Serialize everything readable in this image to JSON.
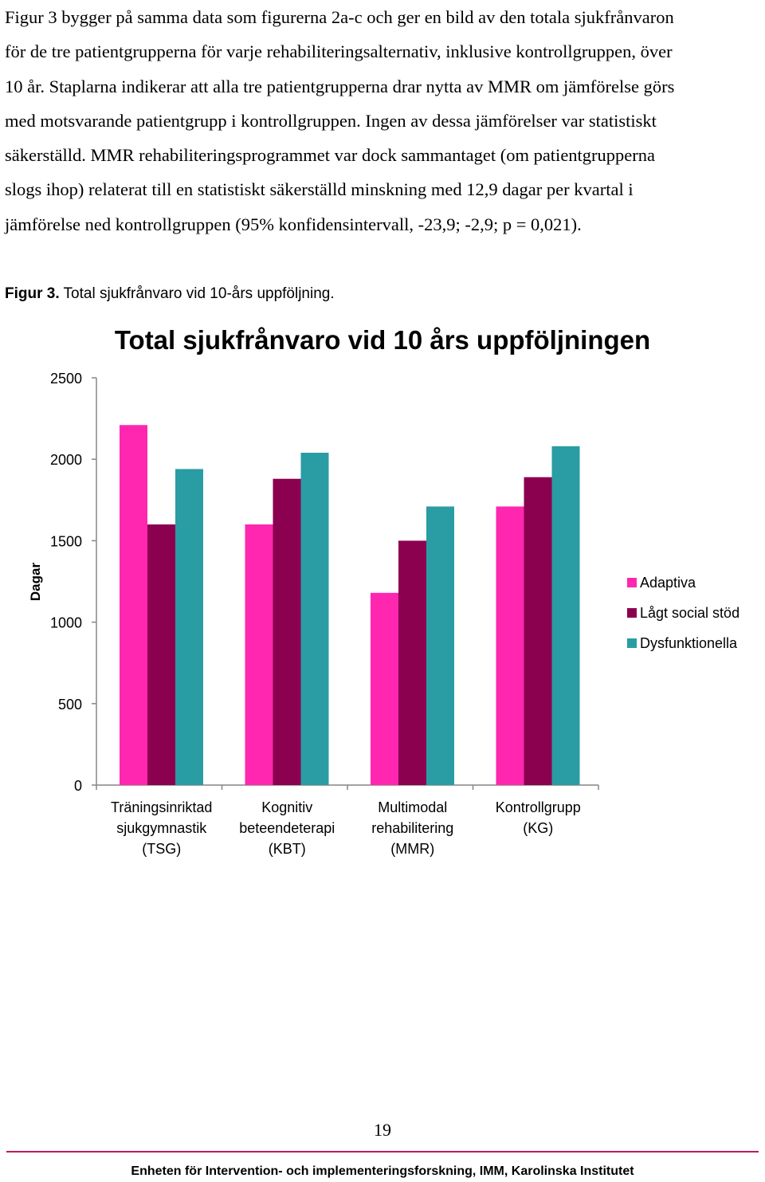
{
  "paragraph": {
    "lines": [
      "Figur 3 bygger på samma data som figurerna 2a-c och ger en bild av den totala sjukfrånvaron",
      "för de tre patientgrupperna för varje rehabiliteringsalternativ, inklusive kontrollgruppen, över",
      "10 år. Staplarna indikerar att alla tre patientgrupperna drar nytta av MMR om jämförelse görs",
      "med motsvarande patientgrupp i kontrollgruppen. Ingen av dessa jämförelser var statistiskt",
      "säkerställd. MMR rehabiliteringsprogrammet var dock sammantaget (om patientgrupperna",
      "slogs ihop) relaterat till en statistiskt säkerställd minskning med 12,9 dagar per kvartal i",
      "jämförelse ned kontrollgruppen (95% konfidensintervall, -23,9; -2,9; p = 0,021)."
    ]
  },
  "caption": {
    "label": "Figur 3.",
    "text": " Total sjukfrånvaro vid 10-års uppföljning."
  },
  "chart_data": {
    "type": "bar",
    "title": "Total sjukfrånvaro vid 10 års uppföljningen",
    "ylabel": "Dagar",
    "xlabel": "",
    "ylim": [
      0,
      2500
    ],
    "yticks": [
      0,
      500,
      1000,
      1500,
      2000,
      2500
    ],
    "grid": false,
    "legend_position": "right",
    "categories": [
      [
        "Träningsinriktad",
        "sjukgymnastik",
        "(TSG)"
      ],
      [
        "Kognitiv",
        "beteendeterapi",
        "(KBT)"
      ],
      [
        "Multimodal",
        "rehabilitering",
        "(MMR)"
      ],
      [
        "Kontrollgrupp",
        "(KG)"
      ]
    ],
    "series": [
      {
        "name": "Adaptiva",
        "color": "#ff27b0",
        "values": [
          2210,
          1600,
          1180,
          1710
        ]
      },
      {
        "name": "Lågt social stöd",
        "color": "#8b004f",
        "values": [
          1600,
          1880,
          1500,
          1890
        ]
      },
      {
        "name": "Dysfunktionella",
        "color": "#2a9ca4",
        "values": [
          1940,
          2040,
          1710,
          2080
        ]
      }
    ]
  },
  "page_number": "19",
  "footer": "Enheten för Intervention- och implementeringsforskning, IMM, Karolinska Institutet"
}
